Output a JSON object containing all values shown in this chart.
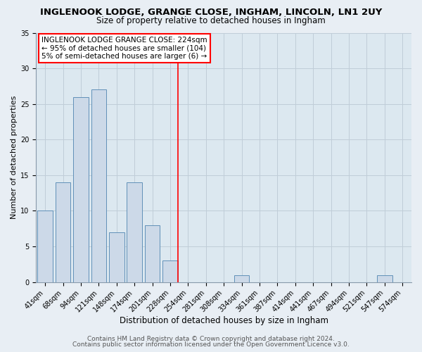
{
  "title": "INGLENOOK LODGE, GRANGE CLOSE, INGHAM, LINCOLN, LN1 2UY",
  "subtitle": "Size of property relative to detached houses in Ingham",
  "xlabel": "Distribution of detached houses by size in Ingham",
  "ylabel": "Number of detached properties",
  "bar_labels": [
    "41sqm",
    "68sqm",
    "94sqm",
    "121sqm",
    "148sqm",
    "174sqm",
    "201sqm",
    "228sqm",
    "254sqm",
    "281sqm",
    "308sqm",
    "334sqm",
    "361sqm",
    "387sqm",
    "414sqm",
    "441sqm",
    "467sqm",
    "494sqm",
    "521sqm",
    "547sqm",
    "574sqm"
  ],
  "bar_values": [
    10,
    14,
    26,
    27,
    7,
    14,
    8,
    3,
    0,
    0,
    0,
    1,
    0,
    0,
    0,
    0,
    0,
    0,
    0,
    1,
    0
  ],
  "bar_color": "#ccd9e8",
  "bar_edge_color": "#6090b8",
  "vline_pos": 7.425,
  "vline_color": "red",
  "ylim": [
    0,
    35
  ],
  "yticks": [
    0,
    5,
    10,
    15,
    20,
    25,
    30,
    35
  ],
  "annotation_title": "INGLENOOK LODGE GRANGE CLOSE: 224sqm",
  "annotation_line1": "← 95% of detached houses are smaller (104)",
  "annotation_line2": "5% of semi-detached houses are larger (6) →",
  "footer_line1": "Contains HM Land Registry data © Crown copyright and database right 2024.",
  "footer_line2": "Contains public sector information licensed under the Open Government Licence v3.0.",
  "fig_bg_color": "#e8eef4",
  "plot_bg_color": "#dce8f0",
  "grid_color": "#c0cdd8",
  "title_fontsize": 9.5,
  "subtitle_fontsize": 8.5,
  "xlabel_fontsize": 8.5,
  "ylabel_fontsize": 8,
  "tick_fontsize": 7,
  "footer_fontsize": 6.5,
  "ann_fontsize": 7.5
}
